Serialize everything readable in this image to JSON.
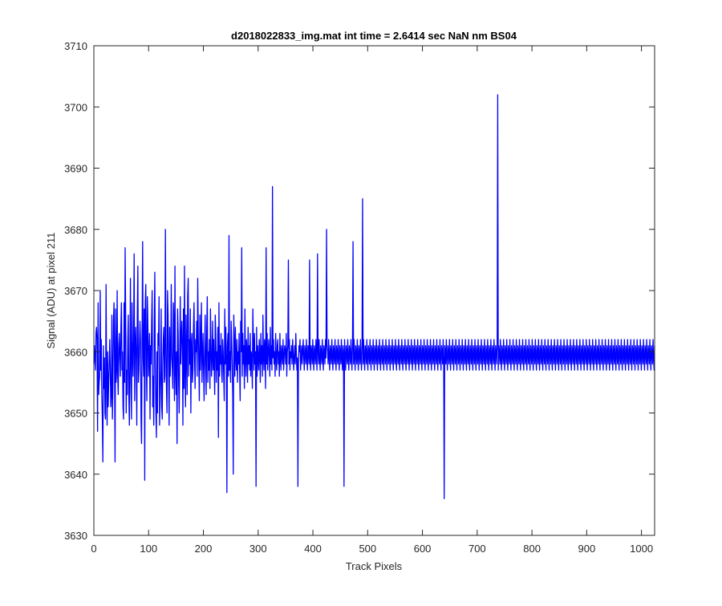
{
  "chart_data": {
    "type": "line",
    "title": "d2018022833_img.mat int time = 2.6414 sec  NaN nm BS04",
    "xlabel": "Track Pixels",
    "ylabel": "Signal (ADU) at pixel 211",
    "xlim": [
      0,
      1024
    ],
    "ylim": [
      3630,
      3710
    ],
    "xticks": [
      0,
      100,
      200,
      300,
      400,
      500,
      600,
      700,
      800,
      900,
      1000
    ],
    "yticks": [
      3630,
      3640,
      3650,
      3660,
      3670,
      3680,
      3690,
      3700,
      3710
    ],
    "grid": false,
    "line_color": "#0000ff",
    "series": [
      {
        "values": [
          3658,
          3661,
          3659,
          3657,
          3663,
          3664,
          3662,
          3647,
          3668,
          3653,
          3655,
          3656,
          3670,
          3657,
          3662,
          3653,
          3649,
          3642,
          3661,
          3654,
          3659,
          3650,
          3649,
          3671,
          3656,
          3648,
          3660,
          3651,
          3655,
          3658,
          3662,
          3657,
          3651,
          3653,
          3666,
          3649,
          3655,
          3665,
          3668,
          3658,
          3642,
          3667,
          3655,
          3657,
          3670,
          3656,
          3653,
          3661,
          3663,
          3659,
          3656,
          3664,
          3668,
          3657,
          3660,
          3651,
          3649,
          3668,
          3655,
          3677,
          3666,
          3650,
          3657,
          3653,
          3662,
          3666,
          3653,
          3648,
          3659,
          3672,
          3655,
          3649,
          3668,
          3660,
          3656,
          3662,
          3676,
          3652,
          3660,
          3664,
          3659,
          3648,
          3666,
          3674,
          3655,
          3657,
          3661,
          3665,
          3662,
          3649,
          3645,
          3663,
          3678,
          3659,
          3656,
          3667,
          3639,
          3668,
          3671,
          3658,
          3652,
          3669,
          3664,
          3656,
          3659,
          3663,
          3649,
          3661,
          3658,
          3665,
          3670,
          3651,
          3656,
          3648,
          3665,
          3673,
          3657,
          3650,
          3646,
          3660,
          3650,
          3663,
          3661,
          3669,
          3648,
          3652,
          3657,
          3667,
          3651,
          3649,
          3658,
          3662,
          3664,
          3655,
          3656,
          3680,
          3662,
          3654,
          3650,
          3670,
          3666,
          3657,
          3648,
          3664,
          3656,
          3659,
          3671,
          3660,
          3657,
          3654,
          3668,
          3665,
          3652,
          3674,
          3657,
          3653,
          3660,
          3645,
          3667,
          3663,
          3655,
          3650,
          3659,
          3669,
          3658,
          3662,
          3665,
          3661,
          3648,
          3667,
          3654,
          3674,
          3657,
          3651,
          3666,
          3660,
          3653,
          3669,
          3672,
          3656,
          3662,
          3658,
          3667,
          3650,
          3661,
          3663,
          3655,
          3657,
          3664,
          3668,
          3659,
          3654,
          3662,
          3660,
          3665,
          3656,
          3672,
          3663,
          3658,
          3652,
          3666,
          3657,
          3661,
          3668,
          3655,
          3659,
          3663,
          3657,
          3652,
          3660,
          3666,
          3658,
          3653,
          3664,
          3669,
          3655,
          3660,
          3657,
          3662,
          3654,
          3667,
          3661,
          3656,
          3659,
          3665,
          3657,
          3662,
          3658,
          3653,
          3666,
          3663,
          3655,
          3660,
          3657,
          3664,
          3646,
          3668,
          3656,
          3661,
          3658,
          3663,
          3657,
          3655,
          3662,
          3660,
          3656,
          3652,
          3667,
          3658,
          3664,
          3659,
          3637,
          3661,
          3663,
          3656,
          3679,
          3657,
          3660,
          3655,
          3665,
          3662,
          3658,
          3653,
          3640,
          3666,
          3661,
          3656,
          3664,
          3659,
          3657,
          3662,
          3655,
          3660,
          3658,
          3663,
          3657,
          3652,
          3665,
          3660,
          3677,
          3656,
          3663,
          3658,
          3661,
          3654,
          3667,
          3659,
          3656,
          3662,
          3660,
          3655,
          3664,
          3658,
          3661,
          3657,
          3663,
          3656,
          3660,
          3659,
          3654,
          3667,
          3661,
          3657,
          3663,
          3658,
          3660,
          3638,
          3664,
          3656,
          3661,
          3659,
          3657,
          3662,
          3660,
          3655,
          3663,
          3658,
          3661,
          3656,
          3666,
          3659,
          3657,
          3662,
          3660,
          3654,
          3677,
          3658,
          3663,
          3657,
          3660,
          3662,
          3659,
          3656,
          3664,
          3658,
          3661,
          3657,
          3687,
          3659,
          3662,
          3658,
          3660,
          3656,
          3663,
          3659,
          3657,
          3661,
          3662,
          3658,
          3660,
          3656,
          3663,
          3659,
          3657,
          3661,
          3660,
          3658,
          3662,
          3657,
          3659,
          3661,
          3660,
          3658,
          3663,
          3656,
          3660,
          3661,
          3675,
          3658,
          3662,
          3657,
          3660,
          3659,
          3661,
          3658,
          3662,
          3660,
          3657,
          3659,
          3661,
          3658,
          3663,
          3660,
          3657,
          3659,
          3638,
          3658,
          3661,
          3660,
          3662,
          3657,
          3659,
          3661,
          3658,
          3660,
          3662,
          3659,
          3657,
          3661,
          3660,
          3658,
          3662,
          3659,
          3657,
          3661,
          3660,
          3658,
          3675,
          3659,
          3657,
          3661,
          3660,
          3658,
          3662,
          3659,
          3657,
          3661,
          3660,
          3658,
          3662,
          3659,
          3657,
          3676,
          3660,
          3658,
          3662,
          3659,
          3657,
          3661,
          3660,
          3658,
          3662,
          3659,
          3657,
          3661,
          3660,
          3658,
          3662,
          3659,
          3680,
          3661,
          3660,
          3658,
          3662,
          3659,
          3657,
          3661,
          3660,
          3658,
          3662,
          3659,
          3657,
          3661,
          3660,
          3658,
          3662,
          3659,
          3657,
          3661,
          3660,
          3658,
          3662,
          3659,
          3657,
          3661,
          3660,
          3658,
          3662,
          3659,
          3657,
          3661,
          3660,
          3638,
          3662,
          3659,
          3657,
          3661,
          3660,
          3658,
          3662,
          3659,
          3657,
          3661,
          3660,
          3658,
          3662,
          3659,
          3657,
          3661,
          3678,
          3658,
          3662,
          3659,
          3657,
          3661,
          3660,
          3658,
          3662,
          3659,
          3657,
          3661,
          3660,
          3658,
          3662,
          3659,
          3657,
          3661,
          3685,
          3658,
          3662,
          3659,
          3657,
          3661,
          3660,
          3658,
          3662,
          3659,
          3657,
          3661,
          3660,
          3658,
          3662,
          3659,
          3657,
          3661,
          3660,
          3658,
          3662,
          3659,
          3657,
          3661,
          3660,
          3658,
          3662,
          3659,
          3657,
          3661,
          3660,
          3658,
          3662,
          3659,
          3657,
          3661,
          3660,
          3658,
          3662,
          3659,
          3657,
          3661,
          3660,
          3658,
          3662,
          3659,
          3657,
          3661,
          3660,
          3658,
          3662,
          3659,
          3657,
          3661,
          3660,
          3658,
          3662,
          3659,
          3657,
          3661,
          3660,
          3658,
          3662,
          3659,
          3657,
          3661,
          3660,
          3658,
          3662,
          3659,
          3657,
          3661,
          3660,
          3658,
          3662,
          3659,
          3657,
          3661,
          3660,
          3658,
          3662,
          3659,
          3657,
          3661,
          3660,
          3658,
          3662,
          3659,
          3657,
          3661,
          3660,
          3658,
          3662,
          3659,
          3657,
          3661,
          3660,
          3658,
          3662,
          3659,
          3657,
          3661,
          3660,
          3658,
          3662,
          3659,
          3657,
          3661,
          3660,
          3658,
          3662,
          3659,
          3657,
          3661,
          3660,
          3658,
          3662,
          3659,
          3657,
          3661,
          3660,
          3658,
          3662,
          3659,
          3657,
          3661,
          3660,
          3658,
          3662,
          3659,
          3657,
          3661,
          3660,
          3658,
          3662,
          3659,
          3657,
          3661,
          3660,
          3658,
          3662,
          3659,
          3657,
          3661,
          3660,
          3658,
          3662,
          3659,
          3657,
          3661,
          3660,
          3658,
          3662,
          3659,
          3636,
          3661,
          3660,
          3658,
          3662,
          3659,
          3657,
          3661,
          3660,
          3658,
          3662,
          3659,
          3657,
          3661,
          3660,
          3658,
          3662,
          3659,
          3657,
          3661,
          3660,
          3658,
          3662,
          3659,
          3657,
          3661,
          3660,
          3658,
          3662,
          3659,
          3657,
          3661,
          3660,
          3658,
          3662,
          3659,
          3657,
          3661,
          3660,
          3658,
          3662,
          3659,
          3657,
          3661,
          3660,
          3658,
          3662,
          3659,
          3657,
          3661,
          3660,
          3658,
          3662,
          3659,
          3657,
          3661,
          3660,
          3658,
          3662,
          3659,
          3657,
          3661,
          3660,
          3658,
          3662,
          3659,
          3657,
          3661,
          3660,
          3658,
          3662,
          3659,
          3657,
          3661,
          3660,
          3658,
          3662,
          3659,
          3657,
          3661,
          3660,
          3658,
          3662,
          3659,
          3657,
          3661,
          3660,
          3658,
          3662,
          3659,
          3657,
          3661,
          3660,
          3658,
          3662,
          3659,
          3657,
          3661,
          3660,
          3658,
          3662,
          3702,
          3657,
          3661,
          3660,
          3658,
          3662,
          3659,
          3657,
          3661,
          3660,
          3658,
          3662,
          3659,
          3657,
          3661,
          3660,
          3658,
          3662,
          3659,
          3657,
          3661,
          3660,
          3658,
          3662,
          3659,
          3657,
          3661,
          3660,
          3658,
          3662,
          3659,
          3657,
          3661,
          3660,
          3658,
          3662,
          3659,
          3657,
          3661,
          3660,
          3658,
          3662,
          3659,
          3657,
          3661,
          3660,
          3658,
          3662,
          3659,
          3657,
          3661,
          3660,
          3658,
          3662,
          3659,
          3657,
          3661,
          3660,
          3658,
          3662,
          3659,
          3657,
          3661,
          3660,
          3658,
          3662,
          3659,
          3657,
          3661,
          3660,
          3658,
          3662,
          3659,
          3657,
          3661,
          3660,
          3658,
          3662,
          3659,
          3657,
          3661,
          3660,
          3658,
          3662,
          3659,
          3657,
          3661,
          3660,
          3658,
          3662,
          3659,
          3657,
          3661,
          3660,
          3658,
          3662,
          3659,
          3657,
          3661,
          3660,
          3658,
          3662,
          3659,
          3657,
          3661,
          3660,
          3658,
          3662,
          3659,
          3657,
          3661,
          3660,
          3658,
          3662,
          3659,
          3657,
          3661,
          3660,
          3658,
          3662,
          3659,
          3657,
          3661,
          3660,
          3658,
          3662,
          3659,
          3657,
          3661,
          3660,
          3658,
          3662,
          3659,
          3657,
          3661,
          3660,
          3658,
          3662,
          3659,
          3657,
          3661,
          3660,
          3658,
          3662,
          3659,
          3657,
          3661,
          3660,
          3658,
          3662,
          3659,
          3657,
          3661,
          3660,
          3658,
          3662,
          3659,
          3657,
          3661,
          3660,
          3658,
          3662,
          3659,
          3657,
          3661,
          3660,
          3658,
          3662,
          3659,
          3657,
          3661,
          3660,
          3658,
          3662,
          3659,
          3657,
          3661,
          3660,
          3658,
          3662,
          3659,
          3657,
          3661,
          3660,
          3658,
          3662,
          3659,
          3657,
          3661,
          3660,
          3658,
          3662,
          3659,
          3657,
          3661,
          3660,
          3658,
          3662,
          3659,
          3657,
          3661,
          3660,
          3658,
          3662,
          3659,
          3657,
          3661,
          3660,
          3658,
          3662,
          3659,
          3657,
          3661,
          3660,
          3658,
          3662,
          3659,
          3657,
          3661,
          3660,
          3658,
          3662,
          3659,
          3657,
          3661,
          3660,
          3658,
          3662,
          3659,
          3657,
          3661,
          3660,
          3658,
          3662,
          3659,
          3657,
          3661,
          3660,
          3658,
          3662,
          3659,
          3657,
          3661,
          3660,
          3658,
          3662,
          3659,
          3657,
          3661,
          3660,
          3658,
          3662,
          3659,
          3657,
          3661,
          3660,
          3658,
          3662,
          3659,
          3657,
          3661,
          3660,
          3658,
          3662,
          3659,
          3657,
          3661,
          3660,
          3658,
          3662,
          3659,
          3657,
          3661,
          3660,
          3658,
          3662,
          3659,
          3657,
          3661,
          3660,
          3658,
          3662,
          3659,
          3657,
          3661,
          3660,
          3658,
          3662,
          3659,
          3657,
          3661,
          3660,
          3658,
          3662,
          3659,
          3657,
          3661
        ]
      }
    ]
  }
}
